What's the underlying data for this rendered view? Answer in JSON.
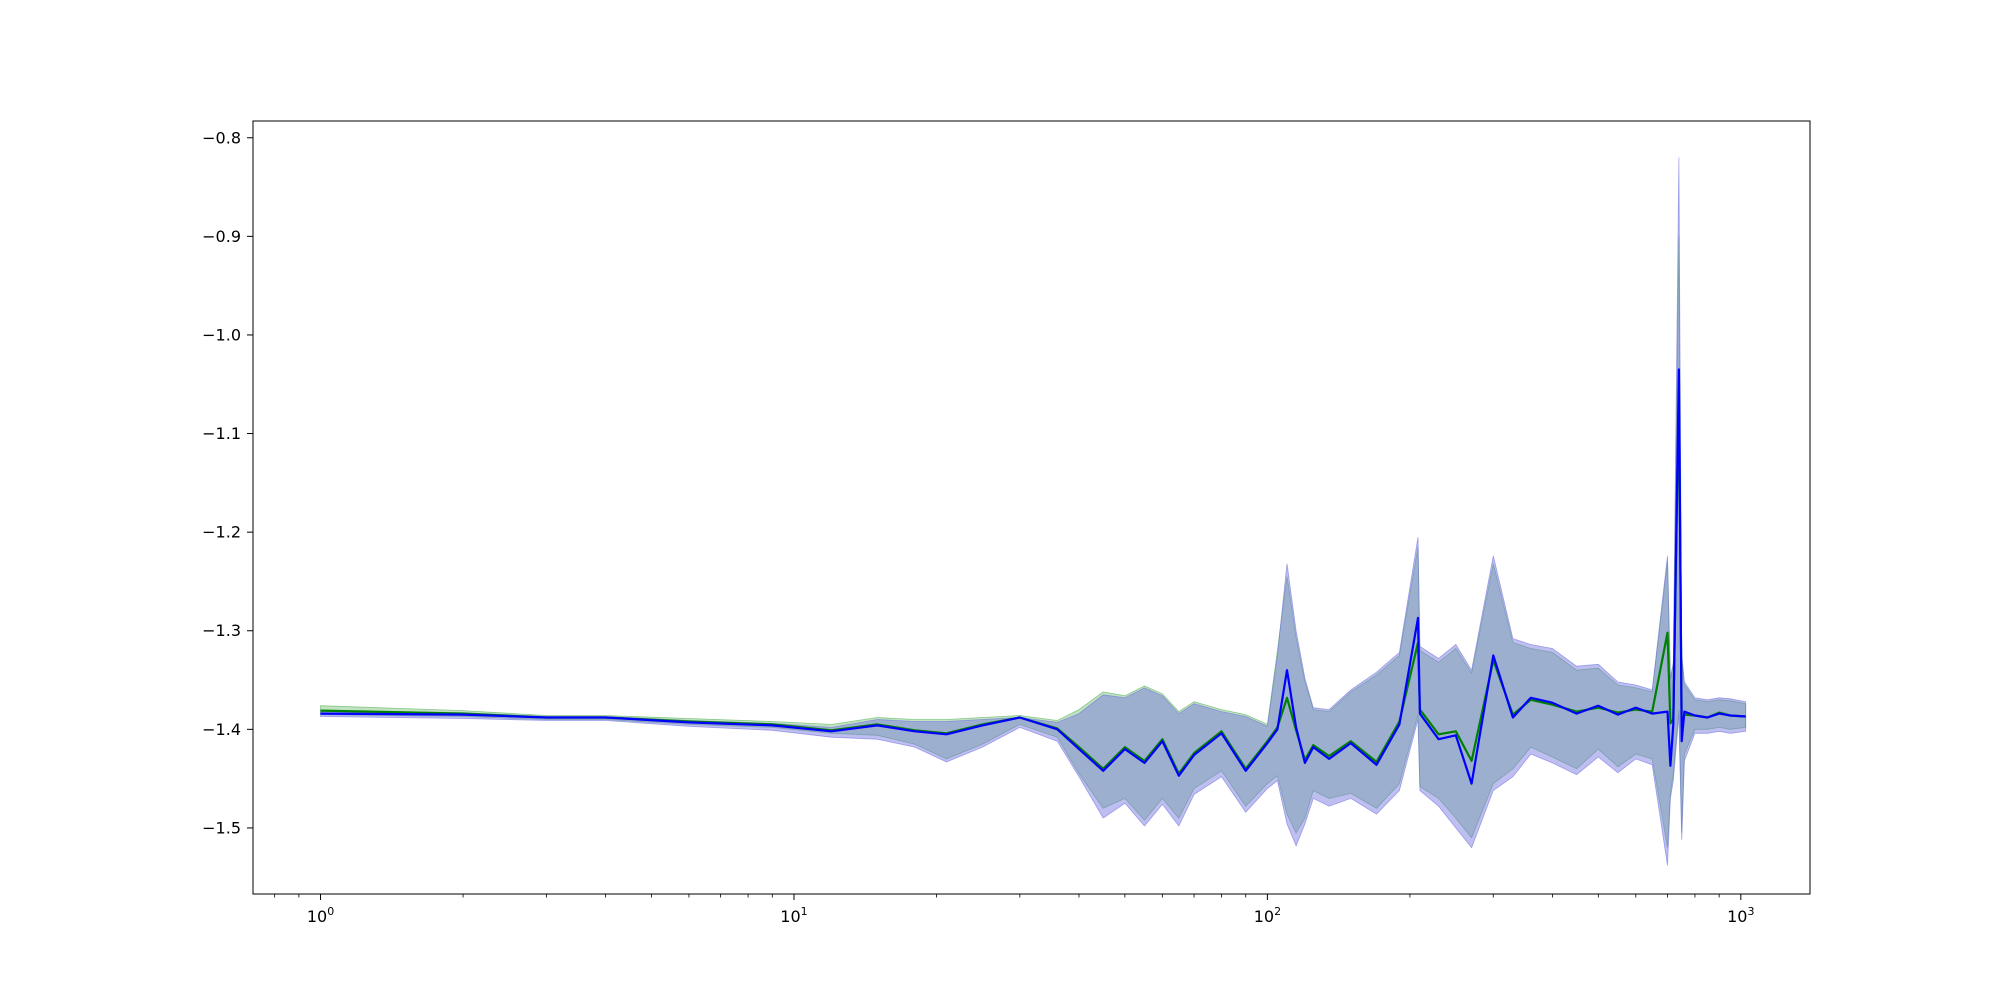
{
  "chart_data": {
    "type": "line",
    "title": "",
    "xlabel": "",
    "ylabel": "",
    "xscale": "log",
    "xlim": [
      0.72,
      1400
    ],
    "ylim": [
      -1.567,
      -0.783
    ],
    "grid": false,
    "legend": "none",
    "x_ticks": [
      {
        "value": 1,
        "base": "10",
        "exp": "0"
      },
      {
        "value": 10,
        "base": "10",
        "exp": "1"
      },
      {
        "value": 100,
        "base": "10",
        "exp": "2"
      },
      {
        "value": 1000,
        "base": "10",
        "exp": "3"
      }
    ],
    "y_ticks": [
      {
        "value": -0.8,
        "label": "−0.8"
      },
      {
        "value": -0.9,
        "label": "−0.9"
      },
      {
        "value": -1.0,
        "label": "−1.0"
      },
      {
        "value": -1.1,
        "label": "−1.1"
      },
      {
        "value": -1.2,
        "label": "−1.2"
      },
      {
        "value": -1.3,
        "label": "−1.3"
      },
      {
        "value": -1.4,
        "label": "−1.4"
      },
      {
        "value": -1.5,
        "label": "−1.5"
      }
    ],
    "series": [
      {
        "color": "#008000",
        "band_color": "#4caf50",
        "x": [
          1,
          2,
          3,
          4,
          6,
          9,
          12,
          15,
          18,
          21,
          25,
          30,
          36,
          40,
          45,
          50,
          55,
          60,
          65,
          70,
          80,
          90,
          100,
          105,
          110,
          115,
          120,
          125,
          135,
          150,
          170,
          190,
          208,
          210,
          230,
          250,
          270,
          300,
          330,
          360,
          400,
          450,
          500,
          550,
          600,
          650,
          700,
          710,
          720,
          740,
          750,
          760,
          800,
          850,
          900,
          950,
          1024
        ],
        "y": [
          -1.381,
          -1.384,
          -1.388,
          -1.388,
          -1.392,
          -1.395,
          -1.401,
          -1.395,
          -1.401,
          -1.404,
          -1.395,
          -1.388,
          -1.399,
          -1.418,
          -1.44,
          -1.418,
          -1.432,
          -1.41,
          -1.445,
          -1.424,
          -1.402,
          -1.44,
          -1.412,
          -1.398,
          -1.368,
          -1.401,
          -1.431,
          -1.416,
          -1.427,
          -1.412,
          -1.433,
          -1.392,
          -1.312,
          -1.38,
          -1.405,
          -1.402,
          -1.432,
          -1.33,
          -1.385,
          -1.37,
          -1.375,
          -1.382,
          -1.378,
          -1.383,
          -1.38,
          -1.382,
          -1.302,
          -1.394,
          -1.39,
          -1.055,
          -1.395,
          -1.385,
          -1.386,
          -1.388,
          -1.383,
          -1.386,
          -1.387
        ],
        "y_lower": [
          -1.385,
          -1.387,
          -1.39,
          -1.39,
          -1.395,
          -1.398,
          -1.404,
          -1.406,
          -1.415,
          -1.43,
          -1.415,
          -1.395,
          -1.408,
          -1.445,
          -1.48,
          -1.47,
          -1.492,
          -1.47,
          -1.49,
          -1.46,
          -1.442,
          -1.478,
          -1.455,
          -1.447,
          -1.486,
          -1.505,
          -1.49,
          -1.462,
          -1.47,
          -1.465,
          -1.48,
          -1.455,
          -1.385,
          -1.458,
          -1.47,
          -1.49,
          -1.51,
          -1.455,
          -1.44,
          -1.418,
          -1.428,
          -1.44,
          -1.42,
          -1.438,
          -1.425,
          -1.43,
          -1.52,
          -1.465,
          -1.445,
          -1.38,
          -1.505,
          -1.425,
          -1.4,
          -1.4,
          -1.398,
          -1.4,
          -1.398
        ],
        "y_upper": [
          -1.376,
          -1.381,
          -1.386,
          -1.386,
          -1.389,
          -1.392,
          -1.395,
          -1.388,
          -1.39,
          -1.39,
          -1.388,
          -1.386,
          -1.391,
          -1.38,
          -1.362,
          -1.366,
          -1.356,
          -1.364,
          -1.382,
          -1.372,
          -1.38,
          -1.385,
          -1.395,
          -1.32,
          -1.245,
          -1.307,
          -1.352,
          -1.38,
          -1.382,
          -1.362,
          -1.345,
          -1.325,
          -1.215,
          -1.32,
          -1.332,
          -1.318,
          -1.343,
          -1.232,
          -1.312,
          -1.318,
          -1.322,
          -1.34,
          -1.338,
          -1.355,
          -1.358,
          -1.362,
          -1.23,
          -1.35,
          -1.335,
          -0.9,
          -1.328,
          -1.355,
          -1.37,
          -1.372,
          -1.37,
          -1.371,
          -1.374
        ]
      },
      {
        "color": "#0000ff",
        "band_color": "#6f6fe0",
        "x": [
          1,
          2,
          3,
          4,
          6,
          9,
          12,
          15,
          18,
          21,
          25,
          30,
          36,
          40,
          45,
          50,
          55,
          60,
          65,
          70,
          80,
          90,
          100,
          105,
          110,
          115,
          120,
          125,
          135,
          150,
          170,
          190,
          208,
          210,
          230,
          250,
          270,
          300,
          330,
          360,
          400,
          450,
          500,
          550,
          600,
          650,
          700,
          710,
          720,
          740,
          750,
          760,
          800,
          850,
          900,
          950,
          1024
        ],
        "y": [
          -1.384,
          -1.385,
          -1.388,
          -1.388,
          -1.393,
          -1.396,
          -1.402,
          -1.396,
          -1.402,
          -1.405,
          -1.396,
          -1.388,
          -1.4,
          -1.42,
          -1.442,
          -1.42,
          -1.434,
          -1.412,
          -1.447,
          -1.426,
          -1.404,
          -1.442,
          -1.414,
          -1.4,
          -1.34,
          -1.398,
          -1.434,
          -1.418,
          -1.43,
          -1.414,
          -1.436,
          -1.395,
          -1.287,
          -1.384,
          -1.41,
          -1.406,
          -1.455,
          -1.325,
          -1.388,
          -1.368,
          -1.373,
          -1.384,
          -1.376,
          -1.385,
          -1.378,
          -1.384,
          -1.382,
          -1.437,
          -1.395,
          -1.035,
          -1.412,
          -1.382,
          -1.386,
          -1.388,
          -1.384,
          -1.386,
          -1.387
        ],
        "y_lower": [
          -1.387,
          -1.389,
          -1.391,
          -1.391,
          -1.397,
          -1.401,
          -1.408,
          -1.41,
          -1.418,
          -1.433,
          -1.418,
          -1.398,
          -1.412,
          -1.448,
          -1.49,
          -1.475,
          -1.498,
          -1.476,
          -1.498,
          -1.466,
          -1.448,
          -1.484,
          -1.46,
          -1.452,
          -1.496,
          -1.518,
          -1.496,
          -1.47,
          -1.478,
          -1.47,
          -1.486,
          -1.462,
          -1.39,
          -1.462,
          -1.478,
          -1.5,
          -1.52,
          -1.462,
          -1.448,
          -1.425,
          -1.434,
          -1.446,
          -1.428,
          -1.444,
          -1.43,
          -1.436,
          -1.538,
          -1.47,
          -1.452,
          -1.385,
          -1.512,
          -1.432,
          -1.404,
          -1.404,
          -1.402,
          -1.404,
          -1.402
        ],
        "y_upper": [
          -1.381,
          -1.383,
          -1.387,
          -1.387,
          -1.391,
          -1.394,
          -1.398,
          -1.39,
          -1.392,
          -1.392,
          -1.39,
          -1.388,
          -1.393,
          -1.384,
          -1.365,
          -1.368,
          -1.358,
          -1.366,
          -1.384,
          -1.374,
          -1.382,
          -1.387,
          -1.397,
          -1.325,
          -1.232,
          -1.3,
          -1.348,
          -1.378,
          -1.38,
          -1.36,
          -1.342,
          -1.322,
          -1.205,
          -1.316,
          -1.328,
          -1.314,
          -1.34,
          -1.224,
          -1.308,
          -1.314,
          -1.318,
          -1.336,
          -1.334,
          -1.352,
          -1.355,
          -1.36,
          -1.224,
          -1.348,
          -1.332,
          -0.82,
          -1.324,
          -1.352,
          -1.368,
          -1.37,
          -1.368,
          -1.369,
          -1.372
        ]
      }
    ]
  }
}
